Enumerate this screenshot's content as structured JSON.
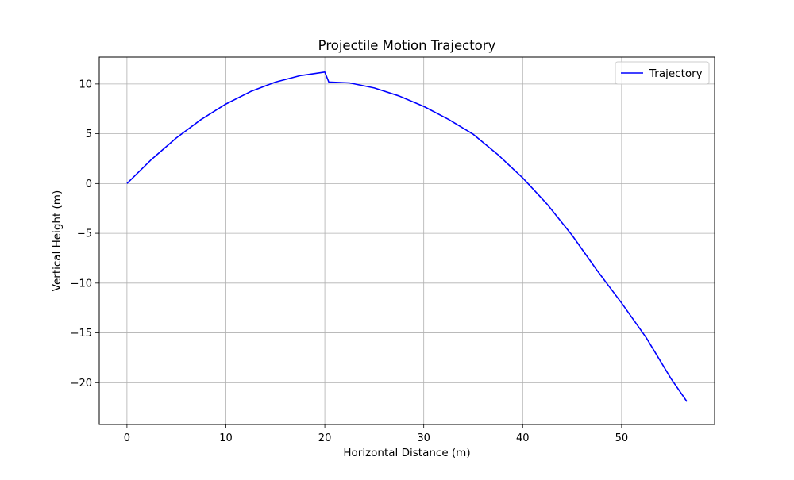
{
  "chart_data": {
    "type": "line",
    "title": "Projectile Motion Trajectory",
    "xlabel": "Horizontal Distance (m)",
    "ylabel": "Vertical Height (m)",
    "xlim": [
      -2.8,
      59.4
    ],
    "ylim": [
      -24.2,
      12.7
    ],
    "xticks": [
      0,
      10,
      20,
      30,
      40,
      50
    ],
    "yticks": [
      -20,
      -15,
      -10,
      -5,
      0,
      5,
      10
    ],
    "ytick_labels": [
      "−20",
      "−15",
      "−10",
      "−5",
      "0",
      "5",
      "10"
    ],
    "grid": true,
    "legend_position": "top-right",
    "series": [
      {
        "name": "Trajectory",
        "color": "#0000ff",
        "x": [
          0,
          2.5,
          5,
          7.5,
          10,
          12.5,
          15,
          17.5,
          20,
          20.4,
          22.5,
          25,
          27.5,
          30,
          32.5,
          35,
          37.5,
          40,
          42.5,
          45,
          47.5,
          50,
          52.5,
          55,
          56.6
        ],
        "y": [
          0,
          2.44,
          4.59,
          6.44,
          7.99,
          9.24,
          10.19,
          10.84,
          11.2,
          10.2,
          10.11,
          9.6,
          8.8,
          7.75,
          6.45,
          4.95,
          2.9,
          0.57,
          -2.1,
          -5.2,
          -8.7,
          -12.0,
          -15.5,
          -19.6,
          -21.9
        ]
      }
    ]
  }
}
